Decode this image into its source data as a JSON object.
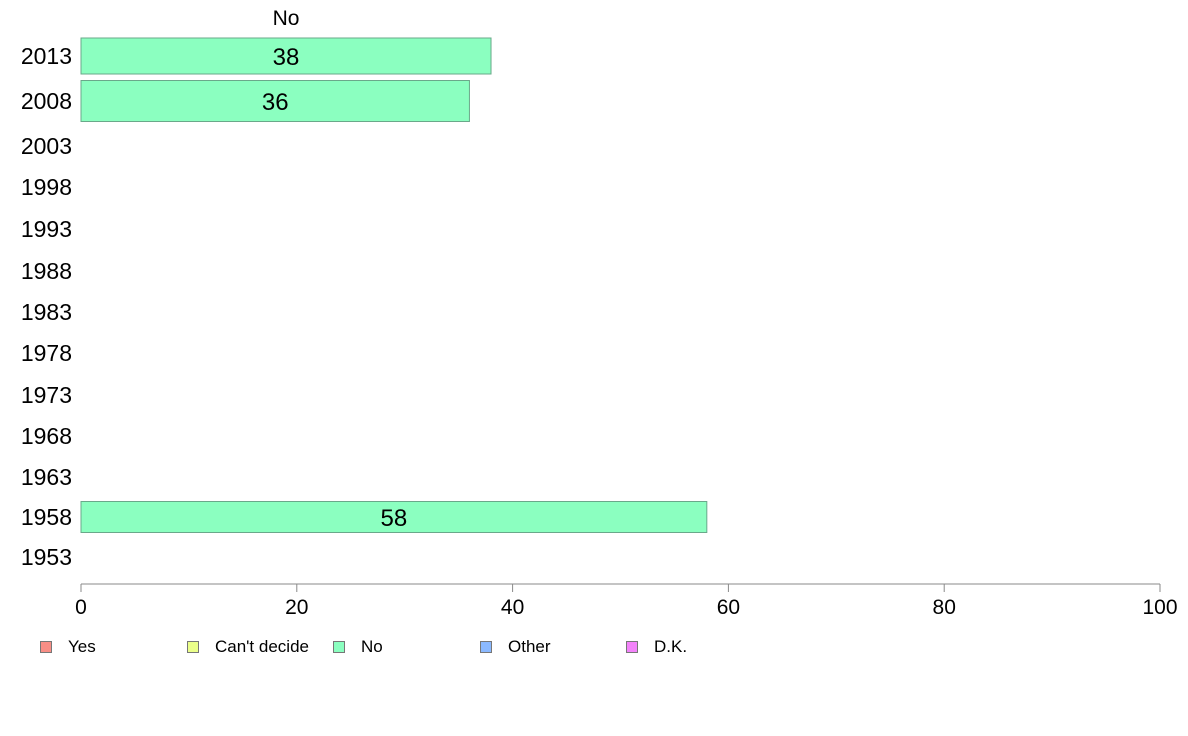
{
  "chart_data": {
    "type": "bar",
    "orientation": "horizontal",
    "title": "No",
    "categories": [
      "2013",
      "2008",
      "2003",
      "1998",
      "1993",
      "1988",
      "1983",
      "1978",
      "1973",
      "1968",
      "1963",
      "1958",
      "1953"
    ],
    "series": [
      {
        "name": "No",
        "color": "#8bffc0",
        "values": [
          38,
          36,
          null,
          null,
          null,
          null,
          null,
          null,
          null,
          null,
          null,
          58,
          null
        ],
        "labels": [
          "38",
          "36",
          "",
          "",
          "",
          "",
          "",
          "",
          "",
          "",
          "",
          "58",
          ""
        ]
      }
    ],
    "xlim": [
      0,
      100
    ],
    "xticks": [
      "0",
      "20",
      "40",
      "60",
      "80",
      "100"
    ],
    "grid": false,
    "legend_position": "bottom"
  },
  "legend": {
    "items": [
      {
        "label": "Yes",
        "color": "#f88e86"
      },
      {
        "label": "Can't decide",
        "color": "#ebff8a"
      },
      {
        "label": "No",
        "color": "#8bffc0"
      },
      {
        "label": "Other",
        "color": "#8bb9ff"
      },
      {
        "label": "D.K.",
        "color": "#f383fa"
      }
    ]
  }
}
